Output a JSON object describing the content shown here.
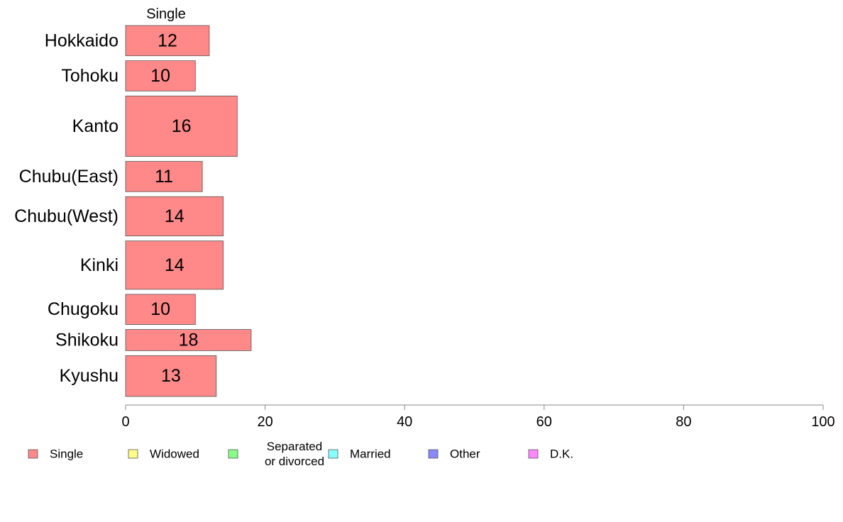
{
  "chart_data": {
    "type": "bar",
    "orientation": "horizontal",
    "stacked": true,
    "column_title": "Single",
    "categories": [
      "Hokkaido",
      "Tohoku",
      "Kanto",
      "Chubu(East)",
      "Chubu(West)",
      "Kinki",
      "Chugoku",
      "Shikoku",
      "Kyushu"
    ],
    "series": [
      {
        "name": "Single",
        "color": "#ff8888",
        "values": [
          12,
          10,
          16,
          11,
          14,
          14,
          10,
          18,
          13
        ],
        "labels": [
          "12",
          "10",
          "16",
          "11",
          "14",
          "14",
          "10",
          "18",
          "13"
        ]
      }
    ],
    "row_weights": [
      1,
      1,
      2,
      1,
      1.3,
      1.6,
      1,
      0.7,
      1.35
    ],
    "xlim": [
      0,
      100
    ],
    "xticks": [
      "0",
      "20",
      "40",
      "60",
      "80",
      "100"
    ],
    "grid": false,
    "legend": {
      "placement": "bottom",
      "entries": [
        {
          "lines": [
            "Single"
          ],
          "color": "#ff8888"
        },
        {
          "lines": [
            "Widowed"
          ],
          "color": "#ffff88"
        },
        {
          "lines": [
            "Separated",
            "or divorced"
          ],
          "color": "#88ff88"
        },
        {
          "lines": [
            "Married"
          ],
          "color": "#88ffff"
        },
        {
          "lines": [
            "Other"
          ],
          "color": "#8888ff"
        },
        {
          "lines": [
            "D.K."
          ],
          "color": "#ff88ff"
        }
      ]
    }
  }
}
